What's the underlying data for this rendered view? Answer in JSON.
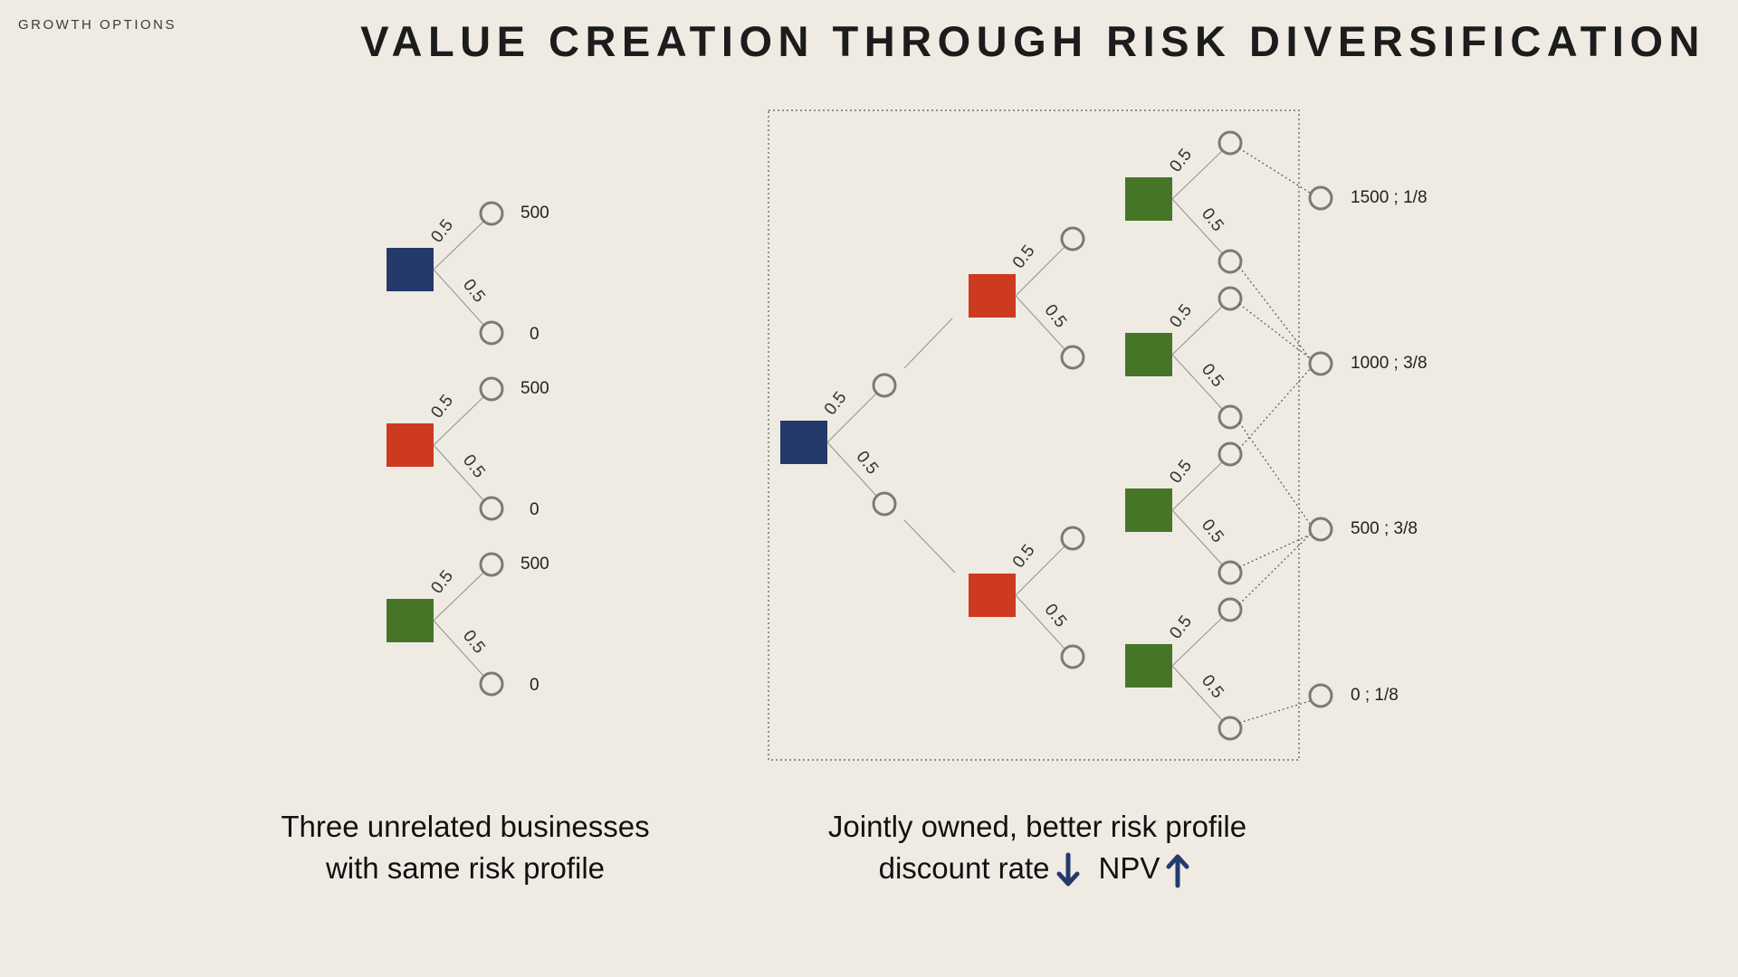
{
  "header": {
    "section_label": "GROWTH OPTIONS",
    "title": "VALUE CREATION THROUGH RISK DIVERSIFICATION"
  },
  "colors": {
    "background": "#efebe3",
    "blue_business": "#243a6b",
    "red_business": "#cd3a20",
    "green_business": "#467528",
    "node_outline": "#7a7a7a",
    "arrow": "#243a6b"
  },
  "left_diagram": {
    "businesses": [
      {
        "color": "blue",
        "branches": [
          {
            "prob": "0.5",
            "value": "500"
          },
          {
            "prob": "0.5",
            "value": "0"
          }
        ]
      },
      {
        "color": "red",
        "branches": [
          {
            "prob": "0.5",
            "value": "500"
          },
          {
            "prob": "0.5",
            "value": "0"
          }
        ]
      },
      {
        "color": "green",
        "branches": [
          {
            "prob": "0.5",
            "value": "500"
          },
          {
            "prob": "0.5",
            "value": "0"
          }
        ]
      }
    ],
    "caption_line1": "Three unrelated businesses",
    "caption_line2": "with same risk profile"
  },
  "right_diagram": {
    "branch_prob": "0.5",
    "stages": [
      "blue",
      "red",
      "green"
    ],
    "outcomes": [
      {
        "label": "1500 ; 1/8"
      },
      {
        "label": "1000 ; 3/8"
      },
      {
        "label": "500 ; 3/8"
      },
      {
        "label": "0 ; 1/8"
      }
    ],
    "caption_line1": "Jointly owned, better risk profile",
    "caption_line2_a": "discount rate",
    "caption_line2_b": "NPV",
    "discount_rate_direction": "down-arrow-icon",
    "npv_direction": "up-arrow-icon"
  }
}
